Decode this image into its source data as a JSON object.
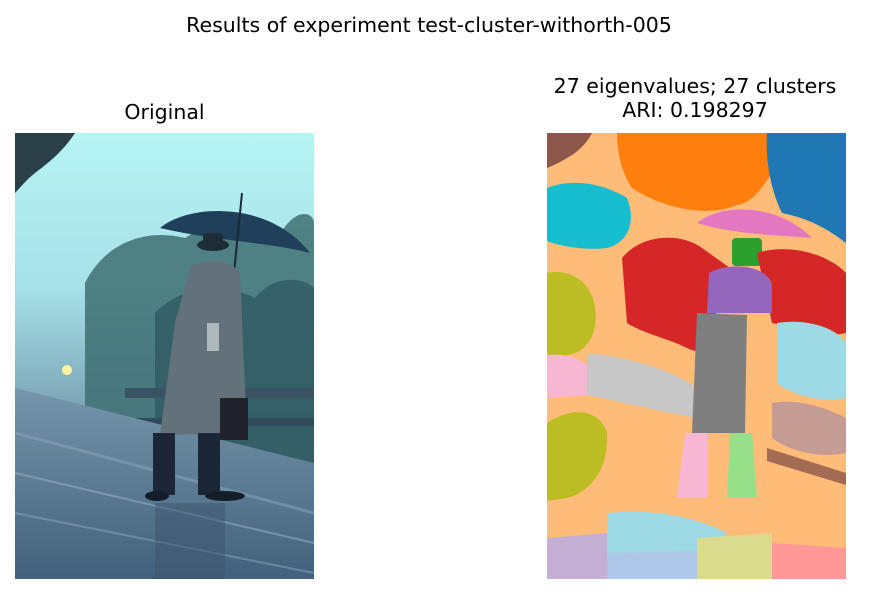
{
  "figure": {
    "suptitle": "Results of experiment test-cluster-withorth-005",
    "left_panel": {
      "title": "Original"
    },
    "right_panel": {
      "title_line1": "27 eigenvalues; 27 clusters",
      "title_line2": "ARI: 0.198297"
    }
  }
}
